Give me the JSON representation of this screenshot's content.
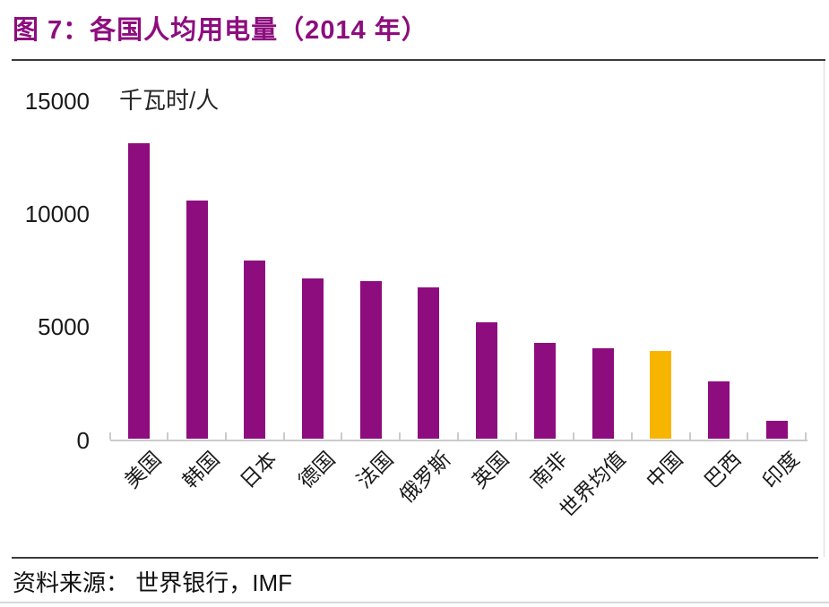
{
  "header": {
    "title": "图 7：各国人均用电量（2014 年）"
  },
  "footer": {
    "source": "资料来源： 世界银行，IMF"
  },
  "chart_data": {
    "type": "bar",
    "title": "图 7：各国人均用电量（2014 年）",
    "unit_label": "千瓦时/人",
    "categories": [
      "美国",
      "韩国",
      "日本",
      "德国",
      "法国",
      "俄罗斯",
      "英国",
      "南非",
      "世界均值",
      "中国",
      "巴西",
      "印度"
    ],
    "values": [
      13100,
      10550,
      7900,
      7100,
      7000,
      6700,
      5150,
      4250,
      4000,
      3900,
      2550,
      800
    ],
    "highlight_index": 9,
    "highlight_category": "中国",
    "bar_color": "#8D0D7E",
    "highlight_color": "#F8B500",
    "axis_color": "#cbcbcb",
    "ylim": [
      0,
      15000
    ],
    "yticks": [
      0,
      5000,
      10000,
      15000
    ],
    "grid": false,
    "legend": null,
    "source": "资料来源： 世界银行，IMF"
  }
}
